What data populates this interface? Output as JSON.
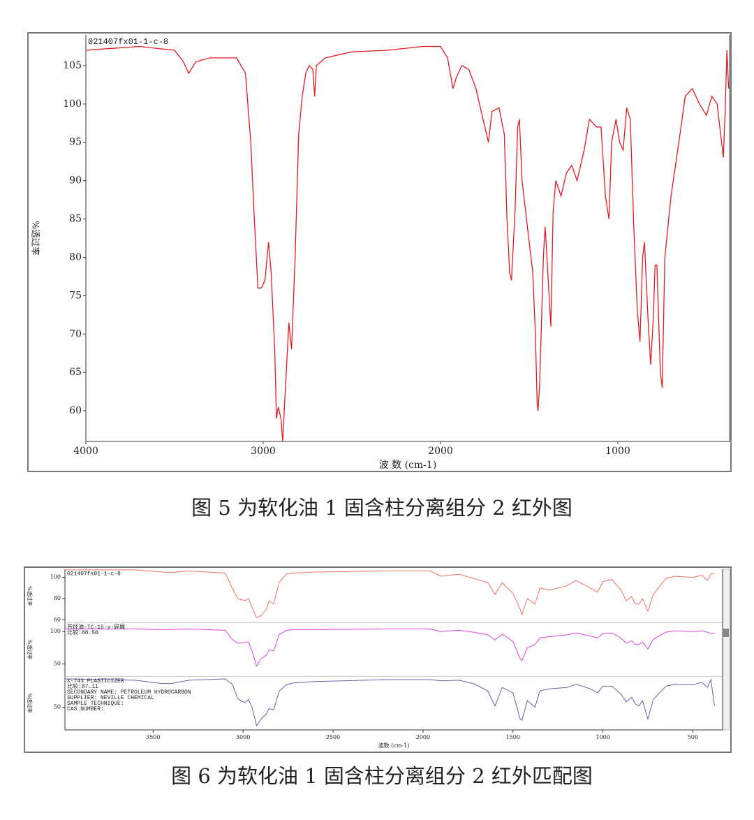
{
  "chart_data": [
    {
      "type": "line",
      "caption": "图 5 为软化油 1 固含柱分离组分 2 红外图",
      "ylabel": "%透过率",
      "xlabel": "波 数 (cm-1)",
      "xlim": [
        4000,
        370
      ],
      "ylim": [
        56,
        109
      ],
      "xticks": [
        4000,
        3000,
        2000,
        1000
      ],
      "yticks": [
        60,
        65,
        70,
        75,
        80,
        85,
        90,
        95,
        100,
        105
      ],
      "x": [
        4000,
        3700,
        3500,
        3450,
        3420,
        3380,
        3300,
        3150,
        3100,
        3070,
        3050,
        3030,
        3010,
        2990,
        2970,
        2955,
        2935,
        2925,
        2915,
        2900,
        2890,
        2870,
        2855,
        2840,
        2820,
        2800,
        2780,
        2760,
        2740,
        2720,
        2710,
        2700,
        2650,
        2500,
        2300,
        2100,
        2000,
        1960,
        1930,
        1910,
        1880,
        1840,
        1800,
        1760,
        1730,
        1710,
        1670,
        1640,
        1625,
        1610,
        1600,
        1580,
        1565,
        1555,
        1540,
        1500,
        1480,
        1465,
        1455,
        1450,
        1440,
        1420,
        1410,
        1395,
        1378,
        1365,
        1350,
        1320,
        1290,
        1260,
        1230,
        1190,
        1160,
        1120,
        1095,
        1070,
        1050,
        1035,
        1010,
        990,
        970,
        950,
        930,
        910,
        890,
        875,
        860,
        850,
        830,
        815,
        800,
        790,
        780,
        760,
        750,
        735,
        700,
        650,
        620,
        580,
        540,
        500,
        470,
        440,
        420,
        405,
        395,
        385,
        375
      ],
      "series": [
        {
          "name": "021407fx01-1-c-8",
          "color": "#e41a1c",
          "values": [
            107,
            107.5,
            107,
            105.5,
            104,
            105.5,
            106,
            106,
            104,
            95,
            85,
            76,
            76,
            77,
            82,
            78,
            68,
            59,
            60.5,
            59,
            56,
            65,
            71.5,
            68,
            80,
            96,
            101,
            104,
            105,
            104.5,
            101,
            105,
            106,
            106.8,
            107,
            107.5,
            107.5,
            106,
            102,
            103.5,
            105,
            104.5,
            102,
            98,
            95,
            99,
            99.5,
            96,
            85,
            78,
            77,
            86,
            97,
            98,
            90,
            82,
            78,
            70,
            61,
            60,
            64,
            80,
            84,
            78,
            71,
            86,
            90,
            88,
            91,
            92,
            90,
            94,
            98,
            97,
            97,
            88,
            85,
            95,
            98,
            95,
            94,
            99.5,
            98,
            84,
            73,
            69,
            80,
            82,
            72,
            66,
            72,
            79,
            79,
            65,
            63,
            80,
            88,
            96,
            101,
            102,
            100,
            98.5,
            101,
            100,
            96,
            93,
            99,
            107,
            102
          ]
        }
      ]
    },
    {
      "type": "line",
      "caption": "图 6 为软化油 1 固含柱分离组分 2 红外匹配图",
      "ylabel": "%透过率",
      "xlabel": "波数 (cm-1)",
      "xlim": [
        3990,
        335
      ],
      "xticks": [
        3500,
        3000,
        2500,
        2000,
        1500,
        1000,
        500
      ],
      "x": [
        3990,
        3600,
        3450,
        3400,
        3300,
        3100,
        3060,
        3030,
        2990,
        2970,
        2950,
        2925,
        2900,
        2870,
        2855,
        2830,
        2800,
        2760,
        2720,
        2600,
        2200,
        1960,
        1900,
        1800,
        1720,
        1640,
        1600,
        1560,
        1500,
        1460,
        1450,
        1420,
        1378,
        1350,
        1300,
        1200,
        1150,
        1070,
        1030,
        1000,
        950,
        900,
        870,
        840,
        820,
        800,
        780,
        750,
        720,
        650,
        600,
        500,
        450,
        420,
        400,
        380
      ],
      "series": [
        {
          "name": "021407fx01-1-c-8",
          "color": "#f07060",
          "ylim": [
            57.2,
            107.6
          ],
          "yticks": [
            60,
            80,
            100
          ],
          "values": [
            107,
            107,
            105,
            104.5,
            106,
            104,
            90,
            80,
            78,
            80,
            72,
            62,
            64,
            70,
            78,
            75,
            95,
            103,
            104,
            105,
            106,
            106,
            101,
            103,
            99,
            95,
            84,
            95,
            85,
            70,
            65,
            80,
            75,
            90,
            88,
            92,
            97,
            90,
            86,
            96,
            98,
            88,
            78,
            82,
            75,
            75,
            80,
            68,
            84,
            99,
            101,
            100,
            102,
            97,
            103,
            104
          ]
        },
        {
          "name": "芳烃油-TC-15-y-碎屑",
          "color": "#e040e0",
          "ylim": [
            31,
            113.5
          ],
          "yticks": [
            50,
            100
          ],
          "notes": [
            "比较:88.50"
          ],
          "values": [
            104,
            104,
            103,
            103,
            104,
            102,
            88,
            82,
            83,
            84,
            70,
            47,
            58,
            64,
            72,
            70,
            95,
            102,
            103,
            103,
            104,
            104,
            100,
            102,
            99,
            95,
            87,
            96,
            85,
            58,
            55,
            75,
            80,
            90,
            92,
            95,
            98,
            93,
            90,
            97,
            98,
            90,
            82,
            86,
            80,
            80,
            84,
            73,
            88,
            99,
            101,
            100,
            101,
            99,
            97,
            98
          ]
        },
        {
          "name": "X-743 PLASTICIZER",
          "color": "#6060b0",
          "ylim": [
            15.6,
            96.9
          ],
          "yticks": [
            50
          ],
          "notes": [
            "比较:87.11",
            "SECONDARY NAME:  PETROLEUM HYDROCARBON",
            "SUPPLIER:  NEVILLE CHEMICAL",
            "SAMPLE TECHNIQUE:",
            "CAS NUMBER:"
          ],
          "values": [
            93,
            91,
            86,
            86,
            91,
            93,
            85,
            63,
            57,
            62,
            50,
            22,
            32,
            40,
            48,
            46,
            74,
            84,
            87,
            89,
            92,
            92,
            90,
            91,
            86,
            75,
            52,
            80,
            72,
            32,
            30,
            60,
            50,
            75,
            78,
            80,
            85,
            78,
            72,
            82,
            82,
            70,
            58,
            65,
            55,
            52,
            60,
            32,
            62,
            82,
            85,
            84,
            88,
            80,
            92,
            52
          ]
        }
      ]
    }
  ]
}
